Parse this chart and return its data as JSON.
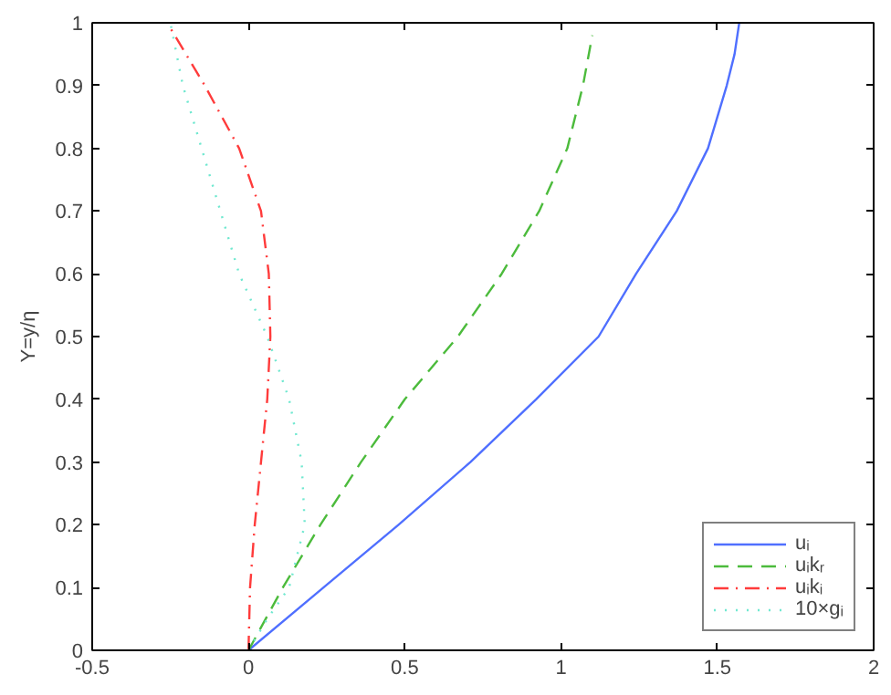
{
  "chart_data": {
    "type": "line",
    "ylabel": "Y=y/η",
    "xlim": [
      -0.5,
      2
    ],
    "xticks": [
      -0.5,
      0,
      0.5,
      1,
      1.5,
      2
    ],
    "ylim": [
      0,
      1
    ],
    "yticks": [
      0,
      0.1,
      0.2,
      0.3,
      0.4,
      0.5,
      0.6,
      0.7,
      0.8,
      0.9,
      1
    ],
    "grid": false,
    "legend": "bottom right",
    "marker": "none",
    "series": [
      {
        "name": "uᵢ",
        "color": "#4f6fff",
        "line_style": "solid",
        "x": [
          0,
          0.24,
          0.48,
          0.71,
          0.92,
          1.12,
          1.24,
          1.37,
          1.47,
          1.53,
          1.555,
          1.57
        ],
        "values": [
          0,
          0.1,
          0.2,
          0.3,
          0.4,
          0.5,
          0.6,
          0.7,
          0.8,
          0.9,
          0.95,
          1
        ]
      },
      {
        "name": "uᵢkᵣ",
        "color": "#4cbb3c",
        "line_style": "dashed",
        "x": [
          0,
          0.11,
          0.23,
          0.36,
          0.5,
          0.67,
          0.81,
          0.93,
          1.02,
          1.07,
          1.1
        ],
        "values": [
          0,
          0.1,
          0.2,
          0.3,
          0.4,
          0.5,
          0.6,
          0.7,
          0.8,
          0.9,
          0.98
        ]
      },
      {
        "name": "uᵢkᵢ",
        "color": "#ff3b3b",
        "line_style": "dashdot",
        "x": [
          0,
          0.005,
          0.02,
          0.04,
          0.06,
          0.07,
          0.065,
          0.04,
          -0.03,
          -0.14,
          -0.26
        ],
        "values": [
          0,
          0.1,
          0.2,
          0.3,
          0.4,
          0.5,
          0.6,
          0.7,
          0.8,
          0.9,
          1
        ]
      },
      {
        "name": "10×gᵢ",
        "color": "#70e8d0",
        "line_style": "dotted",
        "x": [
          0,
          0.06,
          0.13,
          0.18,
          0.17,
          0.13,
          0.06,
          -0.03,
          -0.09,
          -0.15,
          -0.21,
          -0.25
        ],
        "values": [
          0,
          0.05,
          0.1,
          0.2,
          0.3,
          0.4,
          0.5,
          0.6,
          0.7,
          0.8,
          0.9,
          1
        ]
      }
    ]
  }
}
